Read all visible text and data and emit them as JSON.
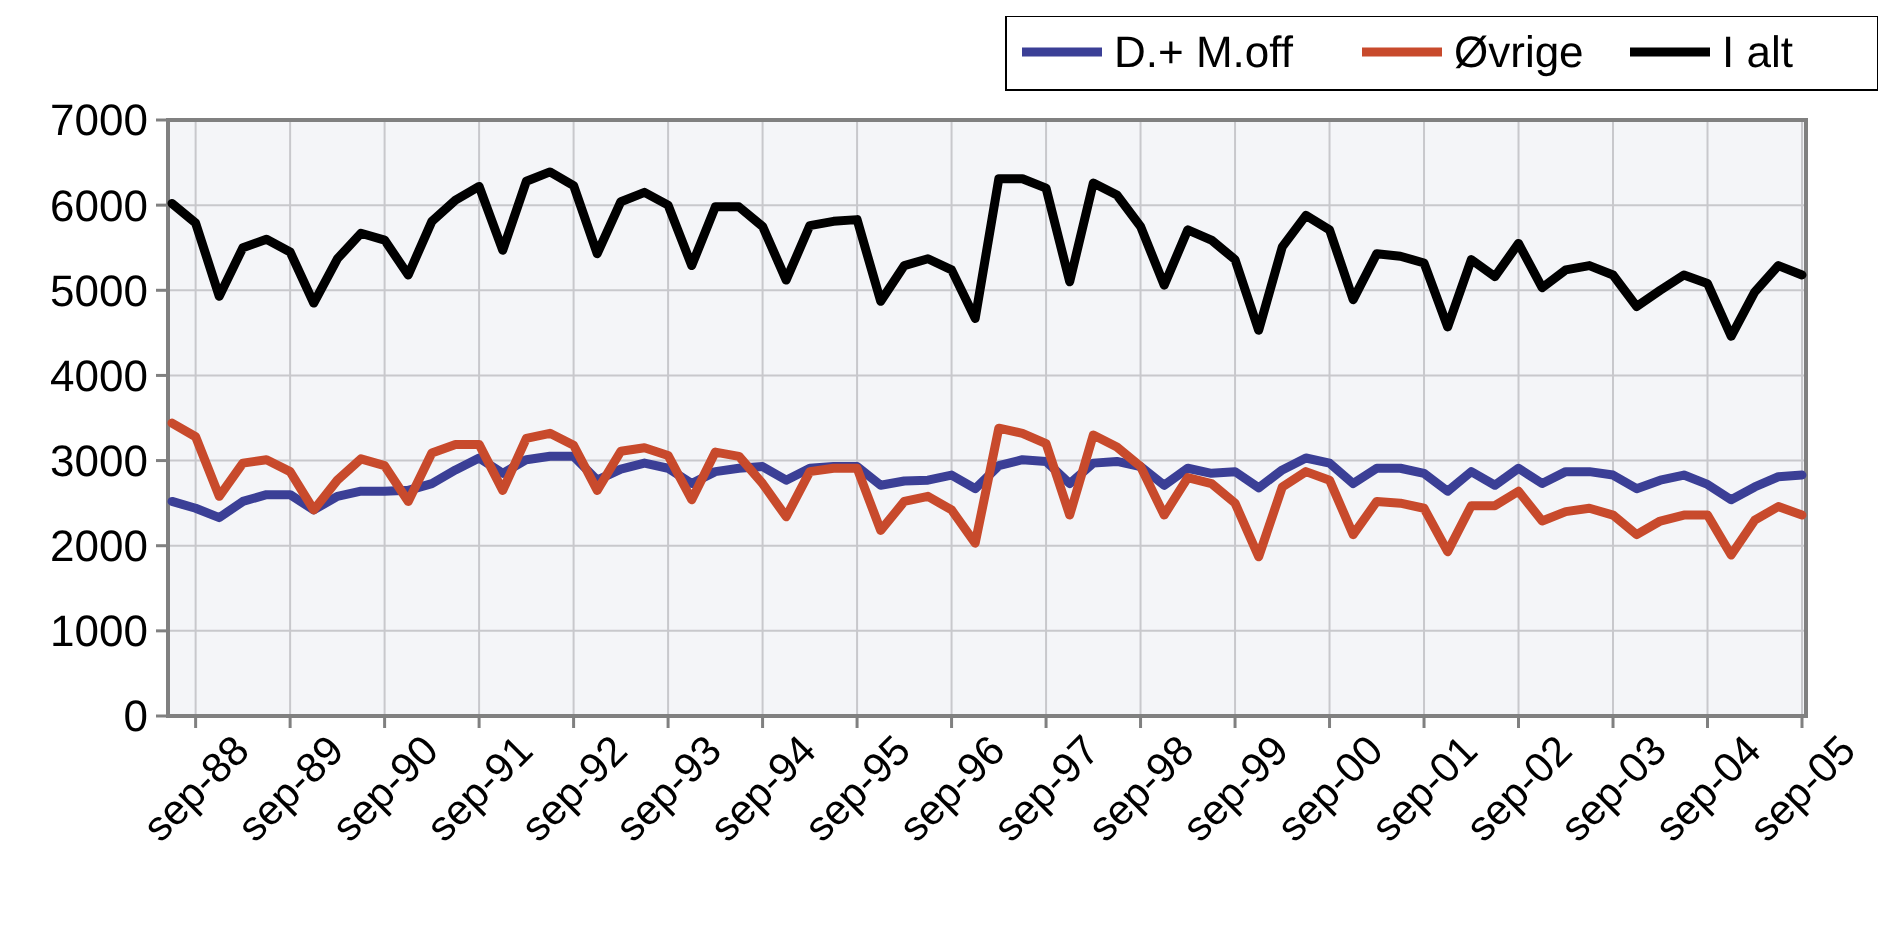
{
  "chart_data": {
    "type": "line",
    "categories": [
      null,
      "sep-88",
      null,
      null,
      null,
      "sep-89",
      null,
      null,
      null,
      "sep-90",
      null,
      null,
      null,
      "sep-91",
      null,
      null,
      null,
      "sep-92",
      null,
      null,
      null,
      "sep-93",
      null,
      null,
      null,
      "sep-94",
      null,
      null,
      null,
      "sep-95",
      null,
      null,
      null,
      "sep-96",
      null,
      null,
      null,
      "sep-97",
      null,
      null,
      null,
      "sep-98",
      null,
      null,
      null,
      "sep-99",
      null,
      null,
      null,
      "sep-00",
      null,
      null,
      null,
      "sep-01",
      null,
      null,
      null,
      "sep-02",
      null,
      null,
      null,
      "sep-03",
      null,
      null,
      null,
      "sep-04",
      null,
      null,
      null,
      "sep-05"
    ],
    "series": [
      {
        "name": "D.+ M.off",
        "color": "#3b3f96",
        "values": [
          2520,
          2440,
          2330,
          2520,
          2600,
          2600,
          2420,
          2580,
          2640,
          2640,
          2650,
          2730,
          2890,
          3030,
          2850,
          3010,
          3050,
          3050,
          2770,
          2900,
          2970,
          2910,
          2730,
          2870,
          2910,
          2930,
          2770,
          2910,
          2930,
          2930,
          2710,
          2760,
          2770,
          2830,
          2670,
          2940,
          3010,
          2990,
          2730,
          2970,
          2990,
          2930,
          2710,
          2910,
          2850,
          2870,
          2680,
          2890,
          3030,
          2970,
          2730,
          2910,
          2910,
          2850,
          2640,
          2870,
          2710,
          2910,
          2730,
          2870,
          2870,
          2830,
          2670,
          2770,
          2830,
          2720,
          2540,
          2690,
          2810,
          2830
        ]
      },
      {
        "name": "Øvrige",
        "color": "#c84a2c",
        "values": [
          3440,
          3280,
          2580,
          2970,
          3010,
          2870,
          2420,
          2770,
          3020,
          2940,
          2520,
          3090,
          3190,
          3190,
          2650,
          3260,
          3320,
          3180,
          2650,
          3110,
          3150,
          3060,
          2540,
          3100,
          3050,
          2730,
          2340,
          2870,
          2910,
          2910,
          2180,
          2520,
          2580,
          2420,
          2030,
          3380,
          3320,
          3200,
          2360,
          3300,
          3160,
          2930,
          2360,
          2800,
          2730,
          2500,
          1870,
          2690,
          2870,
          2770,
          2130,
          2520,
          2500,
          2440,
          1930,
          2470,
          2470,
          2640,
          2290,
          2400,
          2440,
          2360,
          2130,
          2290,
          2360,
          2360,
          1890,
          2300,
          2460,
          2360
        ]
      },
      {
        "name": "I alt",
        "color": "#000000",
        "values": [
          6020,
          5790,
          4930,
          5500,
          5600,
          5450,
          4850,
          5370,
          5670,
          5590,
          5180,
          5810,
          6060,
          6220,
          5470,
          6280,
          6390,
          6230,
          5430,
          6040,
          6150,
          6000,
          5290,
          5980,
          5980,
          5750,
          5120,
          5760,
          5810,
          5830,
          4870,
          5290,
          5370,
          5240,
          4670,
          6310,
          6310,
          6200,
          5100,
          6260,
          6120,
          5750,
          5060,
          5710,
          5590,
          5360,
          4530,
          5510,
          5880,
          5710,
          4890,
          5430,
          5400,
          5320,
          4570,
          5360,
          5160,
          5550,
          5030,
          5240,
          5290,
          5180,
          4810,
          5000,
          5180,
          5080,
          4460,
          4980,
          5290,
          5180
        ]
      }
    ],
    "ylim": [
      0,
      7000
    ],
    "yticks": [
      0,
      1000,
      2000,
      3000,
      4000,
      5000,
      6000,
      7000
    ],
    "grid": true,
    "legend": "top right",
    "marker": "none",
    "line_style": "solid"
  }
}
